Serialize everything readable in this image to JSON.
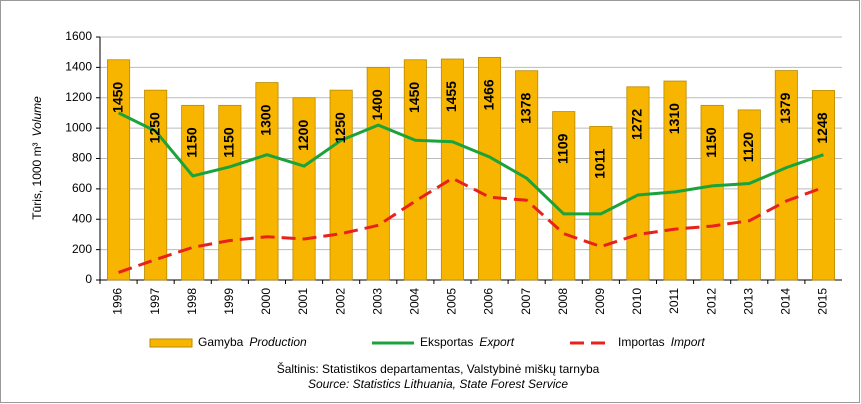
{
  "chart_data": {
    "type": "bar_line",
    "y_label": "Tūris, 1000 m³",
    "y_label_en": "Volume",
    "categories": [
      "1996",
      "1997",
      "1998",
      "1999",
      "2000",
      "2001",
      "2002",
      "2003",
      "2004",
      "2005",
      "2006",
      "2007",
      "2008",
      "2009",
      "2010",
      "2011",
      "2012",
      "2013",
      "2014",
      "2015"
    ],
    "series": [
      {
        "name": "Gamyba",
        "name_en": "Production",
        "kind": "bar",
        "color": "#f7b500",
        "values": [
          1450,
          1250,
          1150,
          1150,
          1300,
          1200,
          1250,
          1400,
          1450,
          1455,
          1466,
          1378,
          1109,
          1011,
          1272,
          1310,
          1150,
          1120,
          1379,
          1248
        ]
      },
      {
        "name": "Eksportas",
        "name_en": "Export",
        "kind": "line",
        "color": "#1aa33a",
        "values": [
          1100,
          980,
          685,
          745,
          825,
          750,
          920,
          1020,
          920,
          910,
          810,
          670,
          435,
          435,
          560,
          580,
          620,
          635,
          740,
          825
        ]
      },
      {
        "name": "Importas",
        "name_en": "Import",
        "kind": "dashed",
        "color": "#e8211d",
        "values": [
          50,
          135,
          215,
          260,
          285,
          270,
          305,
          360,
          520,
          670,
          545,
          525,
          305,
          220,
          300,
          335,
          355,
          390,
          520,
          610
        ]
      }
    ],
    "ylim": [
      0,
      1600
    ],
    "yticks": [
      0,
      200,
      400,
      600,
      800,
      1000,
      1200,
      1400,
      1600
    ],
    "grid": true,
    "source": "Šaltinis: Statistikos departamentas, Valstybinė miškų tarnyba",
    "source_en": "Source: Statistics Lithuania, State Forest Service"
  }
}
